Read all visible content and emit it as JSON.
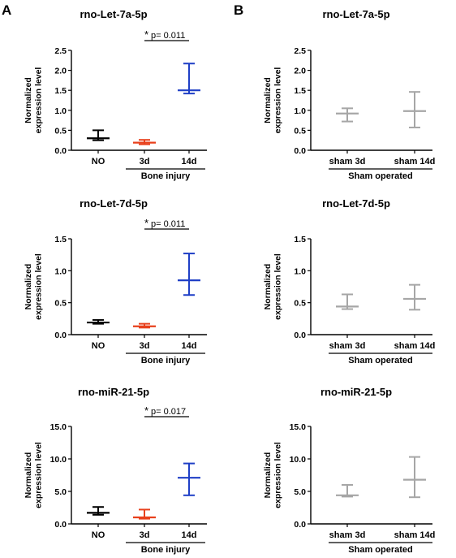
{
  "figure": {
    "panel_labels": [
      "A",
      "B"
    ],
    "colors": {
      "NO": "#000000",
      "3d": "#e8401c",
      "14d": "#1f3fc6",
      "sham": "#a6a6a6",
      "axis": "#000000"
    }
  },
  "chart_data": [
    {
      "type": "scatter",
      "panel": "A",
      "title": "rno-Let-7a-5p",
      "ylabel": "Normalized\nexpression level",
      "ylim": [
        0,
        2.5
      ],
      "yticks": [
        "0.0",
        "0.5",
        "1.0",
        "1.5",
        "2.0",
        "2.5"
      ],
      "categories": [
        "NO",
        "3d",
        "14d"
      ],
      "group_label": "Bone injury",
      "series": [
        {
          "category": "NO",
          "mean": 0.3,
          "lower": 0.25,
          "upper": 0.5,
          "color_key": "NO"
        },
        {
          "category": "3d",
          "mean": 0.19,
          "lower": 0.15,
          "upper": 0.26,
          "color_key": "3d"
        },
        {
          "category": "14d",
          "mean": 1.5,
          "lower": 1.42,
          "upper": 2.17,
          "color_key": "14d"
        }
      ],
      "annotation": {
        "star": "*",
        "text": "p= 0.011",
        "from": "3d",
        "to": "14d"
      }
    },
    {
      "type": "scatter",
      "panel": "B",
      "title": "rno-Let-7a-5p",
      "ylabel": "Normalized\nexpression level",
      "ylim": [
        0,
        2.5
      ],
      "yticks": [
        "0.0",
        "0.5",
        "1.0",
        "1.5",
        "2.0",
        "2.5"
      ],
      "categories": [
        "sham 3d",
        "sham 14d"
      ],
      "group_label": "Sham operated",
      "series": [
        {
          "category": "sham 3d",
          "mean": 0.92,
          "lower": 0.72,
          "upper": 1.05,
          "color_key": "sham"
        },
        {
          "category": "sham 14d",
          "mean": 0.98,
          "lower": 0.57,
          "upper": 1.46,
          "color_key": "sham"
        }
      ]
    },
    {
      "type": "scatter",
      "panel": "A",
      "title": "rno-Let-7d-5p",
      "ylabel": "Normalized\nexpression level",
      "ylim": [
        0,
        1.5
      ],
      "yticks": [
        "0.0",
        "0.5",
        "1.0",
        "1.5"
      ],
      "categories": [
        "NO",
        "3d",
        "14d"
      ],
      "group_label": "Bone injury",
      "series": [
        {
          "category": "NO",
          "mean": 0.19,
          "lower": 0.17,
          "upper": 0.23,
          "color_key": "NO"
        },
        {
          "category": "3d",
          "mean": 0.13,
          "lower": 0.11,
          "upper": 0.17,
          "color_key": "3d"
        },
        {
          "category": "14d",
          "mean": 0.85,
          "lower": 0.62,
          "upper": 1.27,
          "color_key": "14d"
        }
      ],
      "annotation": {
        "star": "*",
        "text": "p= 0.011",
        "from": "3d",
        "to": "14d"
      }
    },
    {
      "type": "scatter",
      "panel": "B",
      "title": "rno-Let-7d-5p",
      "ylabel": "Normalized\nexpression level",
      "ylim": [
        0,
        1.5
      ],
      "yticks": [
        "0.0",
        "0.5",
        "1.0",
        "1.5"
      ],
      "categories": [
        "sham 3d",
        "sham 14d"
      ],
      "group_label": "Sham operated",
      "series": [
        {
          "category": "sham 3d",
          "mean": 0.44,
          "lower": 0.4,
          "upper": 0.63,
          "color_key": "sham"
        },
        {
          "category": "sham 14d",
          "mean": 0.56,
          "lower": 0.39,
          "upper": 0.78,
          "color_key": "sham"
        }
      ]
    },
    {
      "type": "scatter",
      "panel": "A",
      "title": "rno-miR-21-5p",
      "ylabel": "Normalized\nexpression level",
      "ylim": [
        0,
        15
      ],
      "yticks": [
        "0.0",
        "5.0",
        "10.0",
        "15.0"
      ],
      "categories": [
        "NO",
        "3d",
        "14d"
      ],
      "group_label": "Bone injury",
      "series": [
        {
          "category": "NO",
          "mean": 1.7,
          "lower": 1.4,
          "upper": 2.6,
          "color_key": "NO"
        },
        {
          "category": "3d",
          "mean": 1.0,
          "lower": 0.8,
          "upper": 2.2,
          "color_key": "3d"
        },
        {
          "category": "14d",
          "mean": 7.1,
          "lower": 4.4,
          "upper": 9.3,
          "color_key": "14d"
        }
      ],
      "annotation": {
        "star": "*",
        "text": "p= 0.017",
        "from": "3d",
        "to": "14d"
      }
    },
    {
      "type": "scatter",
      "panel": "B",
      "title": "rno-miR-21-5p",
      "ylabel": "Normalized\nexpression level",
      "ylim": [
        0,
        15
      ],
      "yticks": [
        "0.0",
        "5.0",
        "10.0",
        "15.0"
      ],
      "categories": [
        "sham 3d",
        "sham 14d"
      ],
      "group_label": "Sham operated",
      "series": [
        {
          "category": "sham 3d",
          "mean": 4.4,
          "lower": 4.2,
          "upper": 6.0,
          "color_key": "sham"
        },
        {
          "category": "sham 14d",
          "mean": 6.8,
          "lower": 4.1,
          "upper": 10.3,
          "color_key": "sham"
        }
      ]
    }
  ]
}
